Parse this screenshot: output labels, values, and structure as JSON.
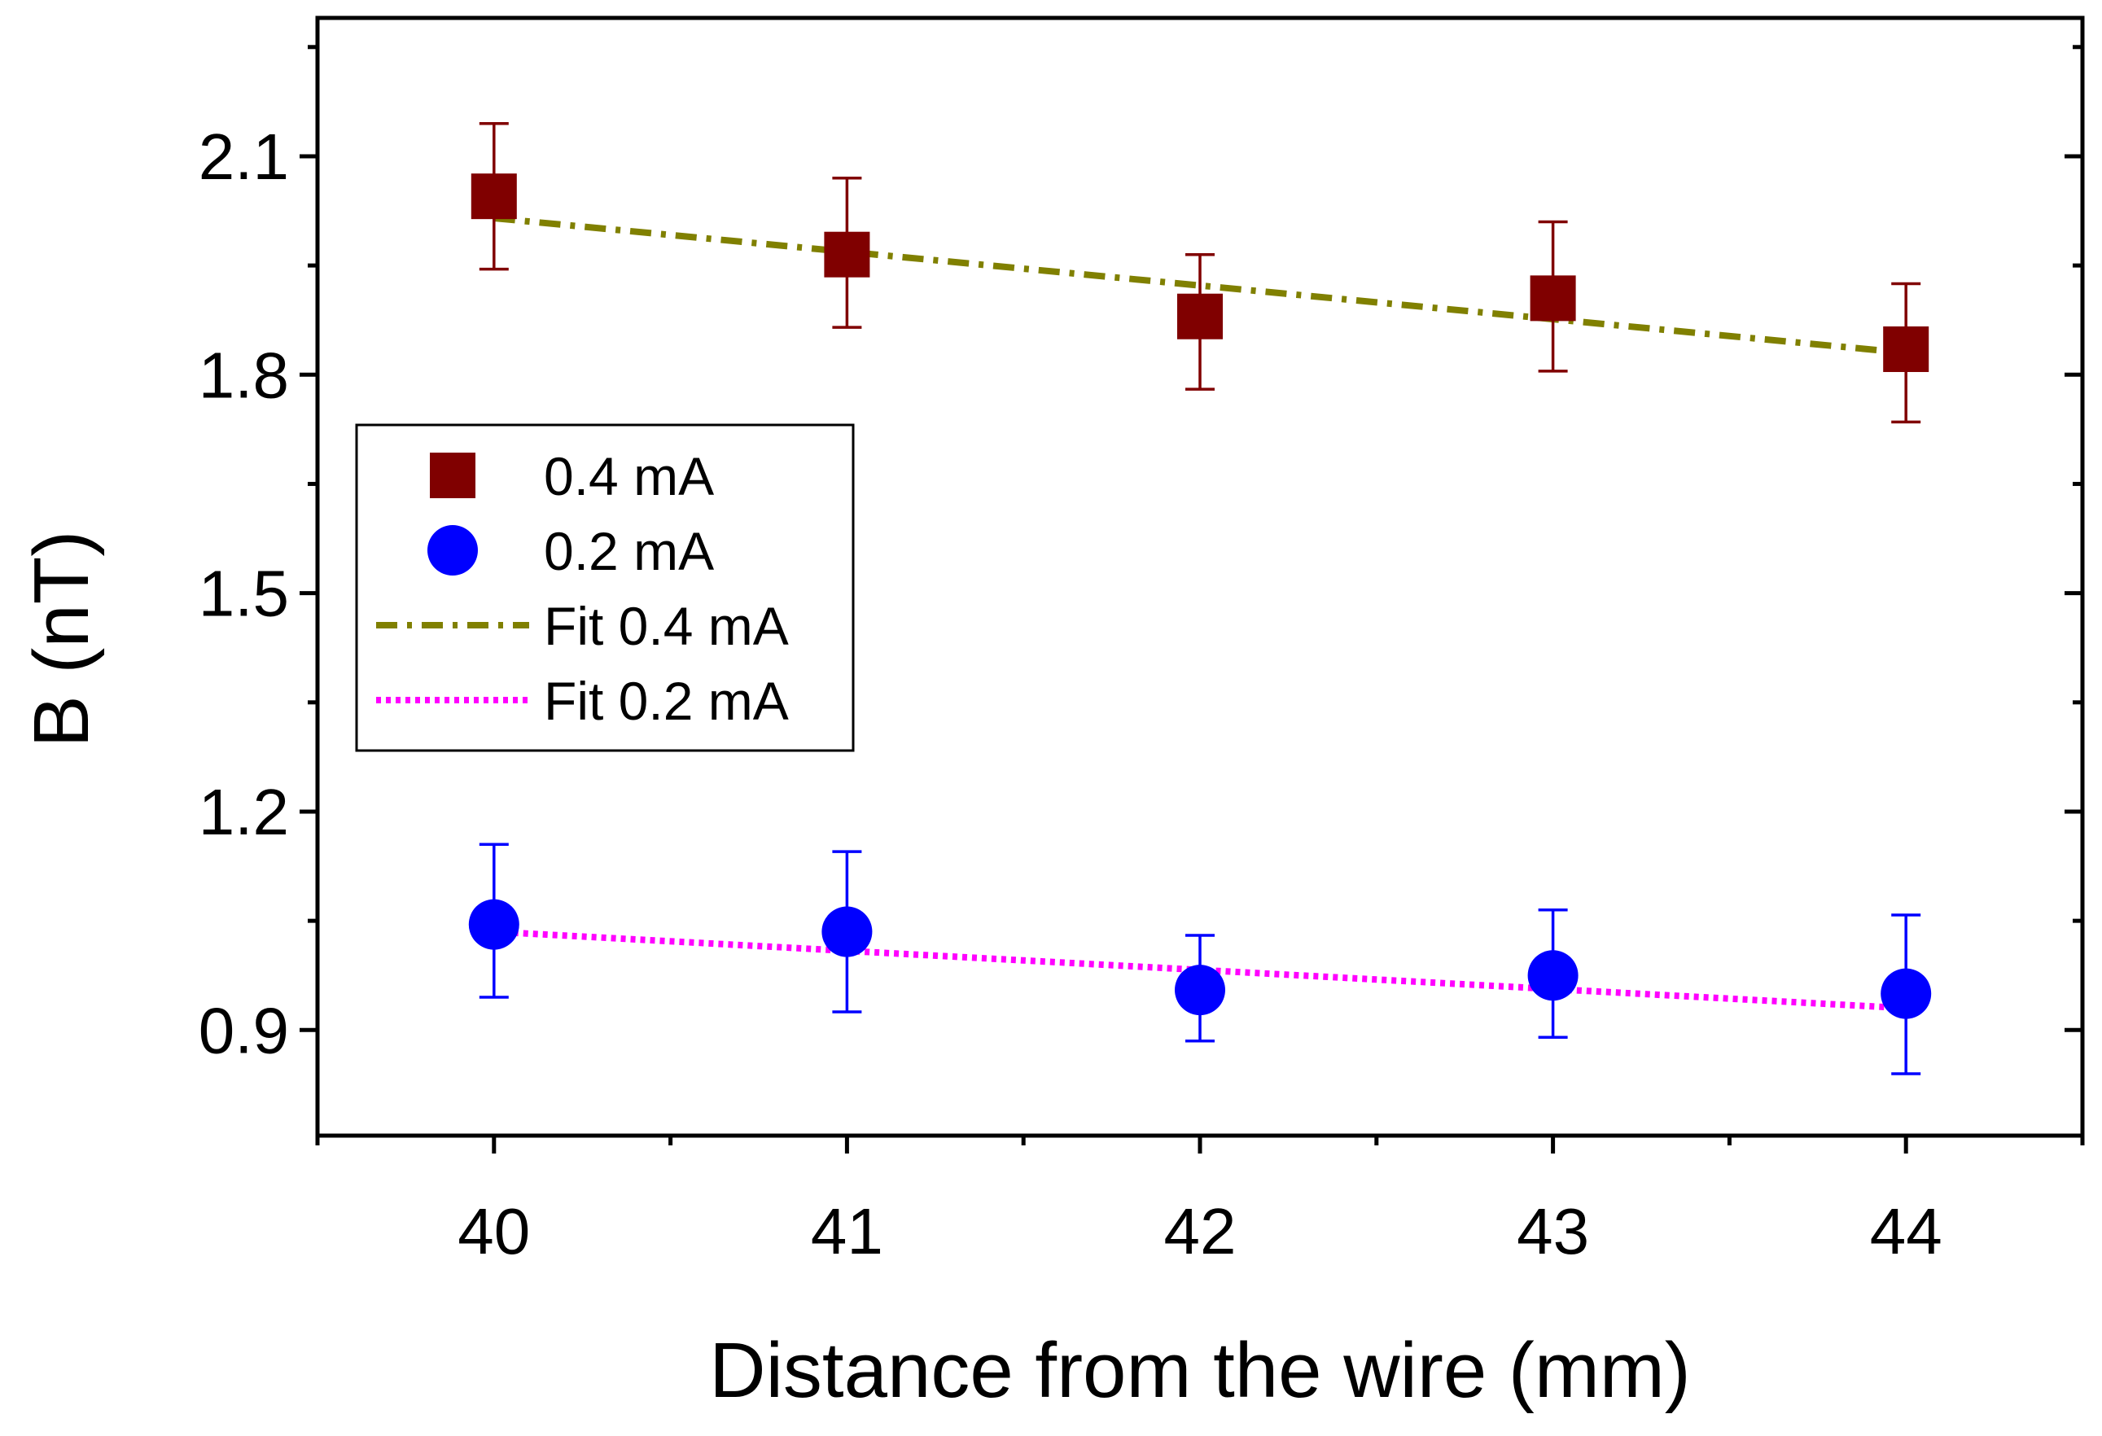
{
  "chart_data": {
    "type": "scatter",
    "title": "",
    "xlabel": "Distance from the wire (mm)",
    "ylabel": "B (nT)",
    "xlim": [
      39.5,
      44.5
    ],
    "ylim": [
      0.755,
      2.29
    ],
    "xticks": [
      40,
      41,
      42,
      43,
      44
    ],
    "xtick_labels": [
      "40",
      "41",
      "42",
      "43",
      "44"
    ],
    "yticks": [
      0.9,
      1.2,
      1.5,
      1.8,
      2.1
    ],
    "ytick_labels": [
      "0.9",
      "1.2",
      "1.5",
      "1.8",
      "2.1"
    ],
    "grid": false,
    "legend_position": "middle-left",
    "series": [
      {
        "name": "0.4 mA",
        "kind": "points",
        "marker": "square",
        "color": "#800000",
        "x": [
          40,
          41,
          42,
          43,
          44
        ],
        "y": [
          2.045,
          1.965,
          1.88,
          1.905,
          1.835
        ],
        "err_low": [
          1.945,
          1.865,
          1.78,
          1.805,
          1.735
        ],
        "err_high": [
          2.145,
          2.07,
          1.965,
          2.01,
          1.925
        ]
      },
      {
        "name": "0.2 mA",
        "kind": "points",
        "marker": "circle",
        "color": "#0000ff",
        "x": [
          40,
          41,
          42,
          43,
          44
        ],
        "y": [
          1.045,
          1.035,
          0.955,
          0.975,
          0.95
        ],
        "err_low": [
          0.945,
          0.925,
          0.885,
          0.89,
          0.84
        ],
        "err_high": [
          1.155,
          1.145,
          1.03,
          1.065,
          1.058
        ]
      },
      {
        "name": "Fit 0.4 mA",
        "kind": "line",
        "style": "dash-dot",
        "color": "#808000",
        "x": [
          40,
          44
        ],
        "y": [
          2.015,
          1.83
        ]
      },
      {
        "name": "Fit 0.2 mA",
        "kind": "line",
        "style": "dotted",
        "color": "#ff00ff",
        "x": [
          40,
          44
        ],
        "y": [
          1.035,
          0.93
        ]
      }
    ]
  }
}
